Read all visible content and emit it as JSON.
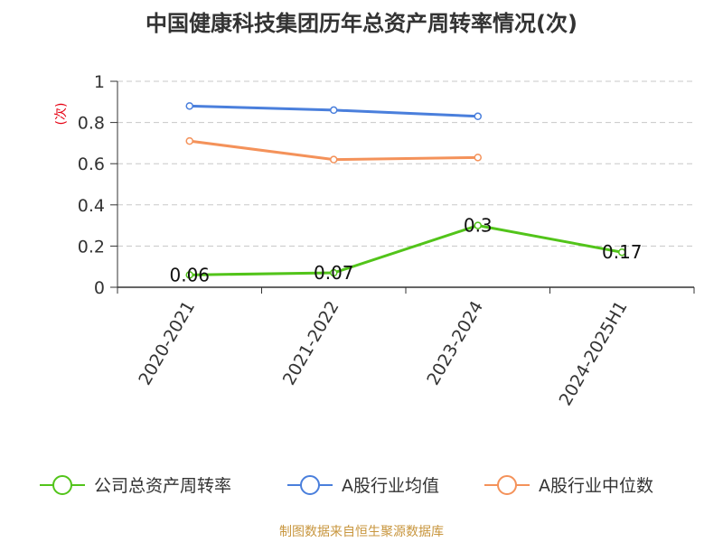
{
  "chart_data": {
    "type": "line",
    "title": "中国健康科技集团历年总资产周转率情况(次)",
    "y_unit": "(次)",
    "categories": [
      "2020-2021",
      "2021-2022",
      "2023-2024",
      "2024-2025H1"
    ],
    "ylim": [
      0,
      1
    ],
    "yticks": [
      "0",
      "0.2",
      "0.4",
      "0.6",
      "0.8",
      "1"
    ],
    "grid": true,
    "legend_position": "bottom",
    "series": [
      {
        "name": "公司总资产周转率",
        "color": "#52c41a",
        "values": [
          0.06,
          0.07,
          0.3,
          0.17
        ],
        "labels": [
          "0.06",
          "0.07",
          "0.3",
          "0.17"
        ]
      },
      {
        "name": "A股行业均值",
        "color": "#4a7fdc",
        "values": [
          0.88,
          0.86,
          0.83,
          null
        ]
      },
      {
        "name": "A股行业中位数",
        "color": "#f4925a",
        "values": [
          0.71,
          0.62,
          0.63,
          null
        ]
      }
    ]
  },
  "footer": "制图数据来自恒生聚源数据库"
}
